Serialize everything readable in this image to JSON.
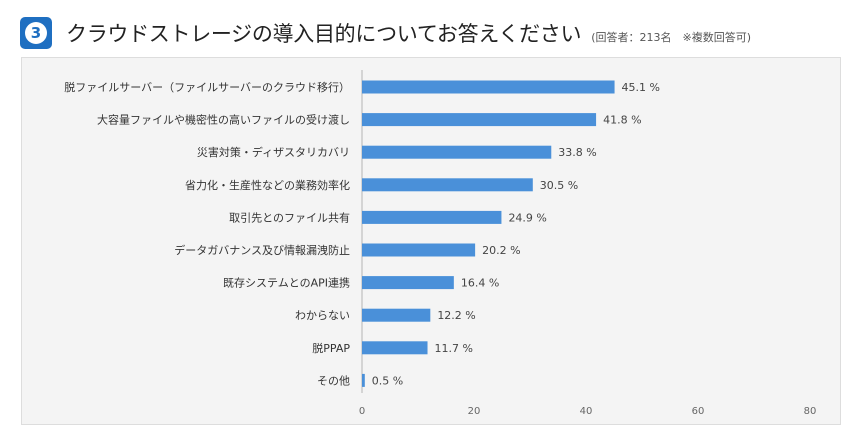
{
  "header": {
    "number": "3",
    "title": "クラウドストレージの導入目的についてお答えください",
    "note": "(回答者：213名　※複数回答可)"
  },
  "colors": {
    "accent": "#1f6fc1",
    "bar": "#4a90d9",
    "panel": "#f4f4f4"
  },
  "chart_data": {
    "type": "bar",
    "orientation": "horizontal",
    "title": "クラウドストレージの導入目的についてお答えください",
    "categories": [
      "脱ファイルサーバー（ファイルサーバーのクラウド移行）",
      "大容量ファイルや機密性の高いファイルの受け渡し",
      "災害対策・ディザスタリカバリ",
      "省力化・生産性などの業務効率化",
      "取引先とのファイル共有",
      "データガバナンス及び情報漏洩防止",
      "既存システムとのAPI連携",
      "わからない",
      "脱PPAP",
      "その他"
    ],
    "values": [
      45.1,
      41.8,
      33.8,
      30.5,
      24.9,
      20.2,
      16.4,
      12.2,
      11.7,
      0.5
    ],
    "value_labels": [
      "45.1 %",
      "41.8 %",
      "33.8 %",
      "30.5 %",
      "24.9 %",
      "20.2 %",
      "16.4 %",
      "12.2 %",
      "11.7 %",
      "0.5 %"
    ],
    "xlim": [
      0,
      80
    ],
    "xticks": [
      "0",
      "20",
      "40",
      "60",
      "80"
    ],
    "grid": false
  }
}
